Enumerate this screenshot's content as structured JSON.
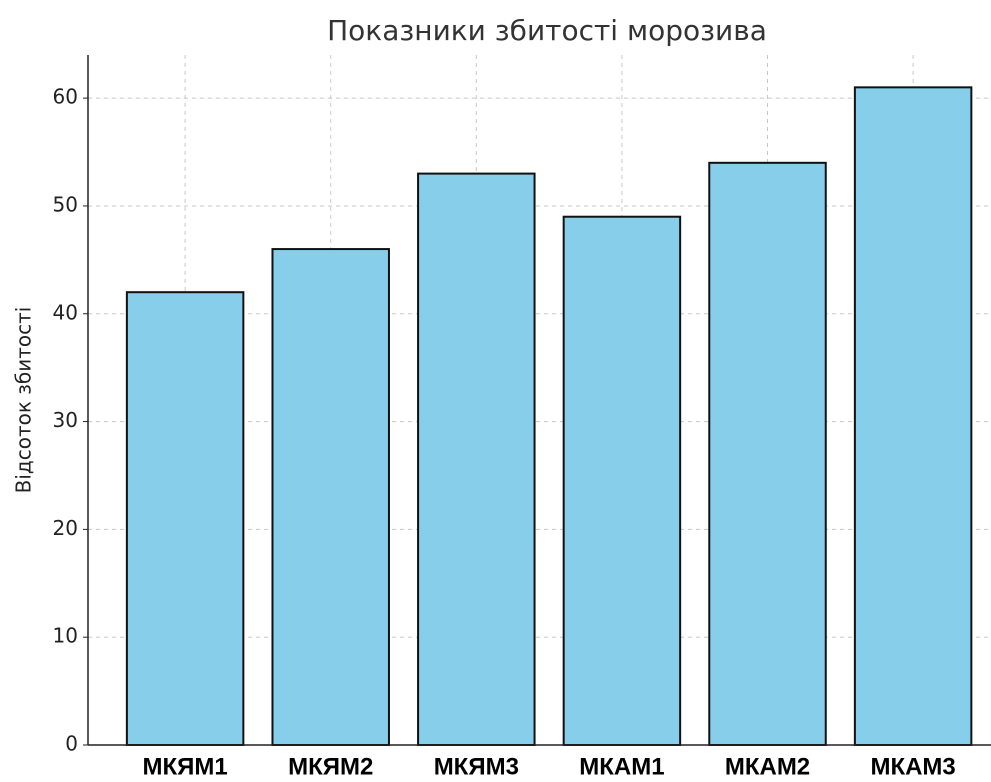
{
  "chart_data": {
    "type": "bar",
    "title": "Показники збитості морозива",
    "y_label": "Відсоток збитості",
    "categories": [
      "МКЯМ1",
      "МКЯМ2",
      "МКЯМ3",
      "МКАМ1",
      "МКАМ2",
      "МКАМ3"
    ],
    "values": [
      42,
      46,
      53,
      49,
      54,
      61
    ],
    "color": "#87ceeb",
    "ylim": [
      0,
      64
    ],
    "yticks": [
      0,
      10,
      20,
      30,
      40,
      50,
      60
    ],
    "grid": true
  }
}
